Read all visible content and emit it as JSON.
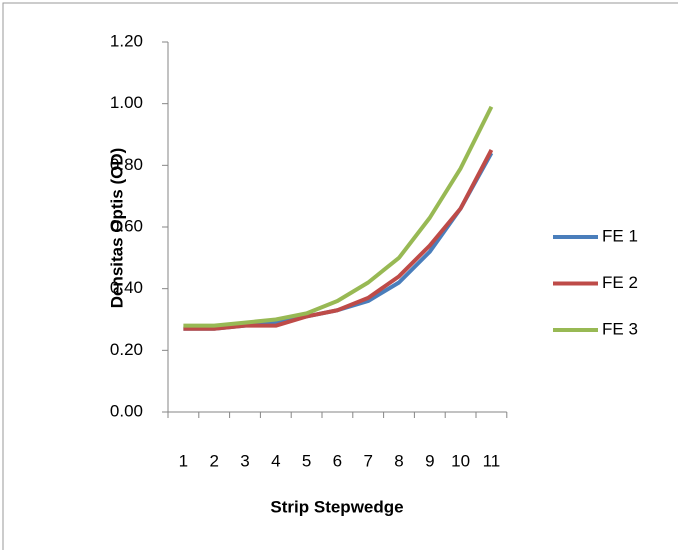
{
  "chart_data": {
    "type": "line",
    "x_label": "Strip Stepwedge",
    "y_label": "Densitas Optis (OD)",
    "categories": [
      "1",
      "2",
      "3",
      "4",
      "5",
      "6",
      "7",
      "8",
      "9",
      "10",
      "11"
    ],
    "series": [
      {
        "name": "FE 1",
        "color": "#4a7ebb",
        "values": [
          0.27,
          0.27,
          0.28,
          0.29,
          0.31,
          0.33,
          0.36,
          0.42,
          0.52,
          0.66,
          0.84
        ]
      },
      {
        "name": "FE 2",
        "color": "#be4b48",
        "values": [
          0.27,
          0.27,
          0.28,
          0.28,
          0.31,
          0.33,
          0.37,
          0.44,
          0.54,
          0.66,
          0.85
        ]
      },
      {
        "name": "FE 3",
        "color": "#98b954",
        "values": [
          0.28,
          0.28,
          0.29,
          0.3,
          0.32,
          0.36,
          0.42,
          0.5,
          0.63,
          0.79,
          0.99
        ]
      }
    ],
    "ylim": [
      0,
      1.2
    ],
    "yticks": [
      {
        "value": 0,
        "label": "0.00"
      },
      {
        "value": 0.2,
        "label": "0.20"
      },
      {
        "value": 0.4,
        "label": "0.40"
      },
      {
        "value": 0.6,
        "label": "0.60"
      },
      {
        "value": 0.8,
        "label": "0.80"
      },
      {
        "value": 1.0,
        "label": "1.00"
      },
      {
        "value": 1.2,
        "label": "1.20"
      }
    ],
    "legend": "right"
  }
}
